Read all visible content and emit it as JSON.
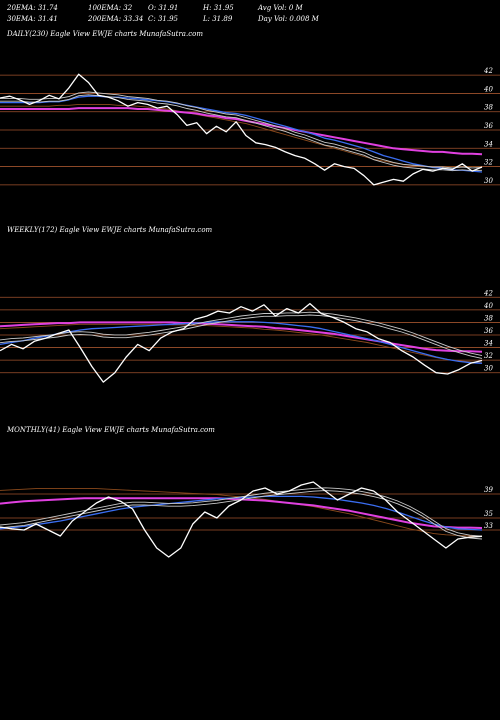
{
  "header": {
    "row1": [
      {
        "text": "20EMA: 31.74"
      },
      {
        "text": "100EMA: 32"
      },
      {
        "text": "O: 31.91"
      },
      {
        "text": "H: 31.95"
      },
      {
        "text": "Avg Vol: 0  M"
      }
    ],
    "row2": [
      {
        "text": "30EMA: 31.41"
      },
      {
        "text": "200EMA: 33.34"
      },
      {
        "text": "C: 31.95"
      },
      {
        "text": "L: 31.89"
      },
      {
        "text": "Day Vol: 0.008 M"
      }
    ]
  },
  "colors": {
    "background": "#000000",
    "price": "#ffffff",
    "ema_fast": "#c8c8c8",
    "ema_mid": "#3a6df0",
    "ema_long": "#e040e0",
    "ema_slow": "#8b4a1c",
    "level_line": "#a0522d"
  },
  "chart_data": [
    {
      "type": "line",
      "title": "DAILY(230) Eagle  View  EWJE charts MunafaSutra.com",
      "y_ticks": [
        "42",
        "40",
        "38",
        "36",
        "34",
        "32",
        "30"
      ],
      "ylim": [
        29,
        43
      ],
      "grid": "horizontal levels",
      "series": [
        {
          "key": "price",
          "values": [
            39.5,
            39.7,
            39.3,
            38.8,
            39.2,
            39.8,
            39.4,
            40.6,
            42.1,
            41.2,
            39.8,
            39.6,
            39.2,
            38.6,
            39.0,
            38.8,
            38.4,
            38.6,
            37.7,
            36.5,
            36.8,
            35.6,
            36.4,
            35.8,
            36.9,
            35.4,
            34.6,
            34.4,
            34.1,
            33.6,
            33.2,
            32.9,
            32.3,
            31.6,
            32.3,
            32.0,
            31.8,
            31.0,
            30.0,
            30.3,
            30.6,
            30.4,
            31.2,
            31.7,
            31.5,
            31.8,
            31.7,
            32.3,
            31.5,
            31.95
          ]
        },
        {
          "key": "ema_fast",
          "values": [
            39.3,
            39.3,
            39.3,
            39.2,
            39.2,
            39.3,
            39.3,
            39.5,
            39.9,
            40.0,
            39.9,
            39.8,
            39.7,
            39.5,
            39.4,
            39.3,
            39.1,
            39.0,
            38.8,
            38.5,
            38.3,
            38.0,
            37.8,
            37.6,
            37.5,
            37.2,
            36.9,
            36.6,
            36.3,
            36.0,
            35.6,
            35.3,
            34.9,
            34.5,
            34.3,
            34.0,
            33.7,
            33.4,
            32.9,
            32.6,
            32.3,
            32.1,
            32.0,
            31.9,
            31.8,
            31.8,
            31.7,
            31.8,
            31.7,
            31.74
          ]
        },
        {
          "key": "ema_mid",
          "values": [
            39.0,
            39.0,
            39.0,
            39.0,
            39.0,
            39.1,
            39.1,
            39.3,
            39.6,
            39.7,
            39.7,
            39.6,
            39.6,
            39.5,
            39.4,
            39.3,
            39.2,
            39.1,
            38.9,
            38.7,
            38.5,
            38.3,
            38.1,
            37.9,
            37.8,
            37.6,
            37.3,
            37.0,
            36.7,
            36.4,
            36.1,
            35.8,
            35.5,
            35.1,
            34.9,
            34.6,
            34.3,
            34.0,
            33.6,
            33.2,
            32.9,
            32.6,
            32.3,
            32.1,
            31.9,
            31.8,
            31.6,
            31.6,
            31.5,
            31.41
          ]
        },
        {
          "key": "ema_long",
          "values": [
            38.3,
            38.3,
            38.3,
            38.3,
            38.3,
            38.3,
            38.3,
            38.3,
            38.4,
            38.4,
            38.4,
            38.4,
            38.4,
            38.4,
            38.3,
            38.3,
            38.2,
            38.1,
            38.0,
            37.9,
            37.8,
            37.6,
            37.5,
            37.3,
            37.2,
            37.0,
            36.8,
            36.6,
            36.4,
            36.2,
            36.0,
            35.8,
            35.6,
            35.4,
            35.2,
            35.0,
            34.8,
            34.6,
            34.4,
            34.2,
            34.0,
            33.9,
            33.8,
            33.7,
            33.6,
            33.6,
            33.5,
            33.4,
            33.4,
            33.34
          ]
        },
        {
          "key": "ema_slow",
          "values": [
            38.6,
            38.6,
            38.6,
            38.6,
            38.6,
            38.6,
            38.7,
            38.7,
            38.8,
            38.8,
            38.8,
            38.8,
            38.7,
            38.7,
            38.6,
            38.5,
            38.4,
            38.3,
            38.1,
            37.9,
            37.7,
            37.5,
            37.3,
            37.1,
            36.9,
            36.7,
            36.4,
            36.1,
            35.8,
            35.5,
            35.2,
            34.9,
            34.6,
            34.3,
            34.0,
            33.7,
            33.4,
            33.1,
            32.8,
            32.6,
            32.4,
            32.2,
            32.1,
            32.0,
            32.0,
            32.0,
            32.0,
            32.0,
            32.0,
            32.0
          ]
        }
      ]
    },
    {
      "type": "line",
      "title": "WEEKLY(172) Eagle  View  EWJE charts MunafaSutra.com",
      "y_ticks": [
        "42",
        "40",
        "38",
        "36",
        "34",
        "32",
        "30"
      ],
      "ylim": [
        29,
        43
      ],
      "grid": "horizontal levels",
      "series": [
        {
          "key": "price",
          "values": [
            33.5,
            34.5,
            33.8,
            35.0,
            35.5,
            36.2,
            36.8,
            34.0,
            31.0,
            28.5,
            30.0,
            32.5,
            34.5,
            33.5,
            35.5,
            36.5,
            37.0,
            38.5,
            39.0,
            39.8,
            39.5,
            40.5,
            39.8,
            40.8,
            39.0,
            40.2,
            39.5,
            41.0,
            39.4,
            38.8,
            38.0,
            37.0,
            36.5,
            35.4,
            34.8,
            33.5,
            32.5,
            31.2,
            30.0,
            29.8,
            30.5,
            31.5,
            31.95
          ]
        },
        {
          "key": "ema_fast",
          "values": [
            35.0,
            35.2,
            35.3,
            35.5,
            35.7,
            35.9,
            36.2,
            36.3,
            36.2,
            35.9,
            35.8,
            35.8,
            36.0,
            36.2,
            36.5,
            36.8,
            37.1,
            37.5,
            37.9,
            38.2,
            38.5,
            38.8,
            39.0,
            39.2,
            39.2,
            39.3,
            39.3,
            39.4,
            39.3,
            39.1,
            38.8,
            38.5,
            38.1,
            37.7,
            37.2,
            36.7,
            36.1,
            35.4,
            34.7,
            34.0,
            33.4,
            32.9,
            32.5
          ]
        },
        {
          "key": "ema_mid",
          "values": [
            34.5,
            34.8,
            35.1,
            35.5,
            35.8,
            36.2,
            36.5,
            36.8,
            37.0,
            37.1,
            37.2,
            37.3,
            37.4,
            37.5,
            37.6,
            37.7,
            37.8,
            37.9,
            38.0,
            38.1,
            38.1,
            38.1,
            38.1,
            38.0,
            37.9,
            37.7,
            37.5,
            37.3,
            37.0,
            36.6,
            36.2,
            35.8,
            35.4,
            35.0,
            34.5,
            34.0,
            33.5,
            33.0,
            32.5,
            32.1,
            31.8,
            31.6,
            31.5
          ]
        },
        {
          "key": "ema_long",
          "values": [
            37.4,
            37.5,
            37.6,
            37.7,
            37.8,
            37.9,
            37.9,
            38.0,
            38.0,
            38.0,
            38.0,
            38.0,
            38.0,
            38.0,
            38.0,
            38.0,
            37.9,
            37.9,
            37.8,
            37.7,
            37.6,
            37.5,
            37.4,
            37.3,
            37.1,
            37.0,
            36.8,
            36.6,
            36.4,
            36.2,
            35.9,
            35.6,
            35.3,
            35.0,
            34.7,
            34.4,
            34.1,
            33.8,
            33.6,
            33.5,
            33.4,
            33.4,
            33.34
          ]
        },
        {
          "key": "ema_slow",
          "values": [
            37.0,
            37.1,
            37.2,
            37.3,
            37.4,
            37.5,
            37.6,
            37.7,
            37.7,
            37.7,
            37.7,
            37.7,
            37.7,
            37.7,
            37.7,
            37.6,
            37.6,
            37.5,
            37.5,
            37.4,
            37.3,
            37.2,
            37.1,
            36.9,
            36.8,
            36.6,
            36.4,
            36.2,
            36.0,
            35.7,
            35.4,
            35.1,
            34.8,
            34.4,
            34.0,
            33.6,
            33.2,
            32.8,
            32.4,
            32.1,
            31.9,
            31.7,
            31.6
          ]
        }
      ]
    },
    {
      "type": "line",
      "title": "MONTHLY(41) Eagle  View  EWJE charts MunafaSutra.com",
      "y_ticks": [
        "39",
        "35",
        "33"
      ],
      "ylim": [
        24,
        42
      ],
      "grid": "horizontal levels",
      "series": [
        {
          "key": "price",
          "values": [
            33.5,
            33.2,
            33.0,
            34.0,
            33.0,
            32.0,
            34.5,
            36.0,
            37.5,
            38.5,
            37.8,
            36.5,
            33.0,
            30.0,
            28.5,
            30.0,
            34.0,
            36.0,
            35.0,
            37.0,
            38.0,
            39.5,
            40.0,
            39.0,
            39.5,
            40.5,
            41.0,
            39.5,
            38.0,
            39.0,
            40.0,
            39.5,
            38.0,
            36.0,
            34.5,
            33.0,
            31.5,
            30.0,
            31.5,
            31.8,
            31.95
          ]
        },
        {
          "key": "ema_fast",
          "values": [
            33.6,
            33.8,
            34.0,
            34.4,
            34.8,
            35.2,
            35.6,
            36.0,
            36.4,
            36.8,
            37.2,
            37.4,
            37.4,
            37.3,
            37.2,
            37.2,
            37.3,
            37.5,
            37.7,
            38.0,
            38.3,
            38.6,
            38.9,
            39.1,
            39.3,
            39.5,
            39.7,
            39.8,
            39.7,
            39.5,
            39.2,
            38.8,
            38.3,
            37.6,
            36.7,
            35.6,
            34.3,
            33.0,
            32.3,
            31.9,
            31.74
          ]
        },
        {
          "key": "ema_mid",
          "values": [
            33.2,
            33.4,
            33.6,
            33.9,
            34.2,
            34.5,
            34.9,
            35.3,
            35.7,
            36.1,
            36.5,
            36.8,
            37.0,
            37.2,
            37.4,
            37.6,
            37.8,
            38.0,
            38.2,
            38.3,
            38.4,
            38.5,
            38.6,
            38.6,
            38.6,
            38.6,
            38.5,
            38.3,
            38.1,
            37.8,
            37.5,
            37.1,
            36.6,
            36.0,
            35.3,
            34.6,
            34.0,
            33.5,
            33.2,
            33.1,
            33.0
          ]
        },
        {
          "key": "ema_long",
          "values": [
            37.4,
            37.6,
            37.8,
            37.9,
            38.0,
            38.1,
            38.2,
            38.3,
            38.3,
            38.3,
            38.3,
            38.3,
            38.3,
            38.3,
            38.3,
            38.3,
            38.3,
            38.3,
            38.3,
            38.2,
            38.1,
            38.0,
            37.9,
            37.7,
            37.5,
            37.3,
            37.1,
            36.8,
            36.5,
            36.2,
            35.8,
            35.4,
            35.0,
            34.6,
            34.2,
            33.9,
            33.6,
            33.5,
            33.4,
            33.4,
            33.34
          ]
        },
        {
          "key": "ema_slow",
          "values": [
            39.6,
            39.7,
            39.8,
            39.9,
            39.9,
            39.9,
            39.9,
            39.9,
            39.9,
            39.8,
            39.7,
            39.6,
            39.5,
            39.4,
            39.3,
            39.2,
            39.1,
            39.0,
            38.9,
            38.7,
            38.5,
            38.3,
            38.1,
            37.8,
            37.5,
            37.2,
            36.9,
            36.5,
            36.1,
            35.7,
            35.2,
            34.7,
            34.2,
            33.7,
            33.2,
            32.8,
            32.4,
            32.2,
            32.1,
            32.0,
            32.0
          ]
        }
      ]
    }
  ]
}
